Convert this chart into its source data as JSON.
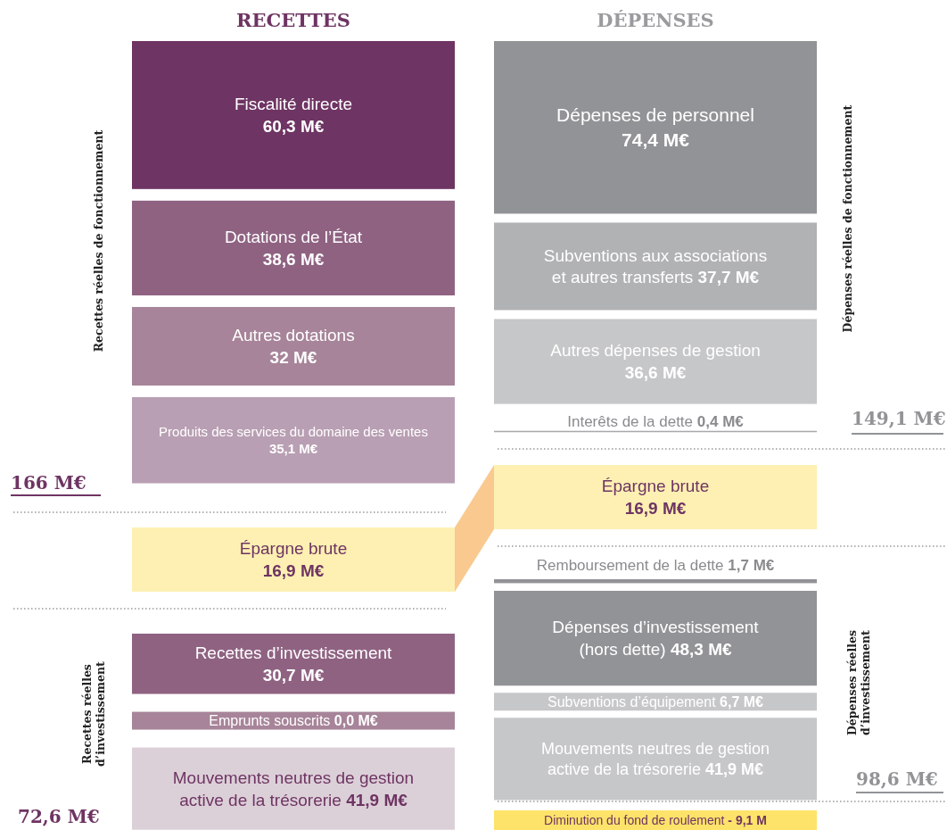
{
  "chart_data": {
    "type": "other",
    "categories": [
      "RECETTES",
      "DÉPENSES"
    ],
    "series": [
      {
        "name": "Fiscalité directe",
        "color": "#6e3463",
        "values": [
          60.3,
          null
        ],
        "value_labels": [
          "60,3 M€",
          null
        ]
      },
      {
        "name": "Dotations de l’État",
        "color": "#8f6282",
        "values": [
          38.6,
          null
        ],
        "value_labels": [
          "38,6 M€",
          null
        ]
      },
      {
        "name": "Autres dotations",
        "color": "#a78499",
        "values": [
          32,
          null
        ],
        "value_labels": [
          "32 M€",
          null
        ]
      },
      {
        "name": "Produits des services du domaine des ventes",
        "color": "#b99fb3",
        "values": [
          35.1,
          null
        ],
        "value_labels": [
          "35,1 M€",
          null
        ]
      },
      {
        "name": "Épargne brute",
        "color": "#fdf0b2",
        "values": [
          16.9,
          null
        ],
        "value_labels": [
          "16,9 M€",
          null
        ]
      },
      {
        "name": "Recettes d’investissement",
        "color": "#8f6282",
        "values": [
          30.7,
          null
        ],
        "value_labels": [
          "30,7 M€",
          null
        ]
      },
      {
        "name": "Emprunts souscrits",
        "color": "#a78499",
        "values": [
          0.0,
          null
        ],
        "value_labels": [
          "0,0 M€",
          null
        ]
      },
      {
        "name": "Mouvements neutres de gestion active de la trésorerie",
        "color": "#dcd0d8",
        "values": [
          41.9,
          null
        ],
        "value_labels": [
          "41,9 M€",
          null
        ]
      },
      {
        "name": "Dépenses de personnel",
        "color": "#929396",
        "values": [
          null,
          74.4
        ],
        "value_labels": [
          null,
          "74,4 M€"
        ]
      },
      {
        "name": "Subventions aux associations et autres transferts",
        "color": "#b1b2b4",
        "values": [
          null,
          37.7
        ],
        "value_labels": [
          null,
          "37,7 M€"
        ]
      },
      {
        "name": "Autres dépenses de gestion",
        "color": "#c6c7c8",
        "values": [
          null,
          36.6
        ],
        "value_labels": [
          null,
          "36,6 M€"
        ]
      },
      {
        "name": "Interêts de la dette",
        "color": "#a7a8aa",
        "values": [
          null,
          0.4
        ],
        "value_labels": [
          null,
          "0,4 M€"
        ]
      },
      {
        "name": "Épargne brute",
        "color": "#fdf0b2",
        "values": [
          null,
          16.9
        ],
        "value_labels": [
          null,
          "16,9 M€"
        ]
      },
      {
        "name": "Remboursement de la dette",
        "color": "#929396",
        "values": [
          null,
          1.7
        ],
        "value_labels": [
          null,
          "1,7 M€"
        ]
      },
      {
        "name": "Dépenses d’investissement (hors dette)",
        "color": "#929396",
        "values": [
          null,
          48.3
        ],
        "value_labels": [
          null,
          "48,3 M€"
        ]
      },
      {
        "name": "Subventions d’équipement",
        "color": "#c6c7c8",
        "values": [
          null,
          6.7
        ],
        "value_labels": [
          null,
          "6,7 M€"
        ]
      },
      {
        "name": "Mouvements neutres de gestion active de la trésorerie",
        "color": "#c6c7c8",
        "values": [
          null,
          41.9
        ],
        "value_labels": [
          null,
          "41,9 M€"
        ]
      },
      {
        "name": "Diminution du fond de roulement",
        "color": "#fde36a",
        "values": [
          null,
          -9.1
        ],
        "value_labels": [
          null,
          "- 9,1 M"
        ]
      }
    ],
    "annotations": [
      "166 M€",
      "72,6 M€",
      "149,1 M€",
      "98,6 M€",
      "Recettes réelles de fonctionnement",
      "Recettes réelles d’investissement",
      "Dépenses réelles de fonctionnement",
      "Dépenses réelles d’investissement"
    ]
  }
}
